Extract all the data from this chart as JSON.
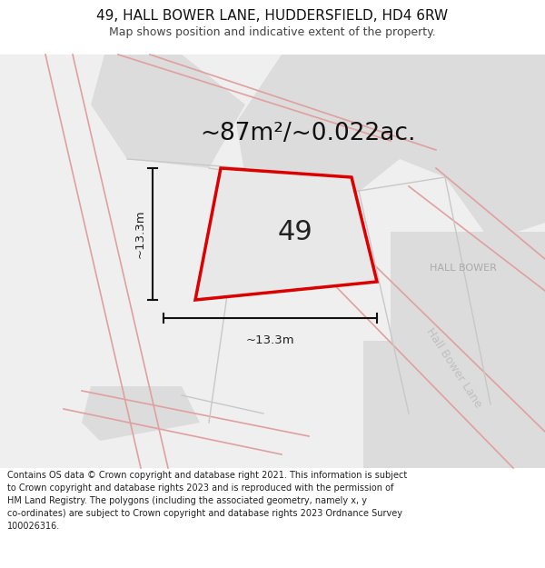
{
  "title_line1": "49, HALL BOWER LANE, HUDDERSFIELD, HD4 6RW",
  "title_line2": "Map shows position and indicative extent of the property.",
  "area_text": "~87m²/~0.022ac.",
  "property_number": "49",
  "dim_vertical": "~13.3m",
  "dim_horizontal": "~13.3m",
  "road_label_diagonal": "Hall Bower Lane",
  "road_label_upper": "HALL BOWER",
  "footer_lines": [
    "Contains OS data © Crown copyright and database right 2021. This information is subject",
    "to Crown copyright and database rights 2023 and is reproduced with the permission of",
    "HM Land Registry. The polygons (including the associated geometry, namely x, y",
    "co-ordinates) are subject to Crown copyright and database rights 2023 Ordnance Survey",
    "100026316."
  ],
  "map_bg": "#efefef",
  "road_fill_dark": "#d8d8d8",
  "road_fill_light": "#e4e4e4",
  "property_fill": "#e8e8e8",
  "property_outline_color": "#dd0000",
  "dim_line_color": "#111111",
  "road_line_color": "#e0a0a0",
  "gray_line_color": "#c8c8c8",
  "text_dark": "#111111",
  "text_mid": "#444444",
  "road_text_color": "#c0c0c0",
  "hall_bower_text_color": "#aaaaaa",
  "footer_color": "#222222",
  "title_fontsize": 11,
  "subtitle_fontsize": 9,
  "area_fontsize": 19,
  "number_fontsize": 22,
  "dim_fontsize": 9.5,
  "road_label_fontsize": 9,
  "hall_bower_fontsize": 8,
  "footer_fontsize": 7
}
